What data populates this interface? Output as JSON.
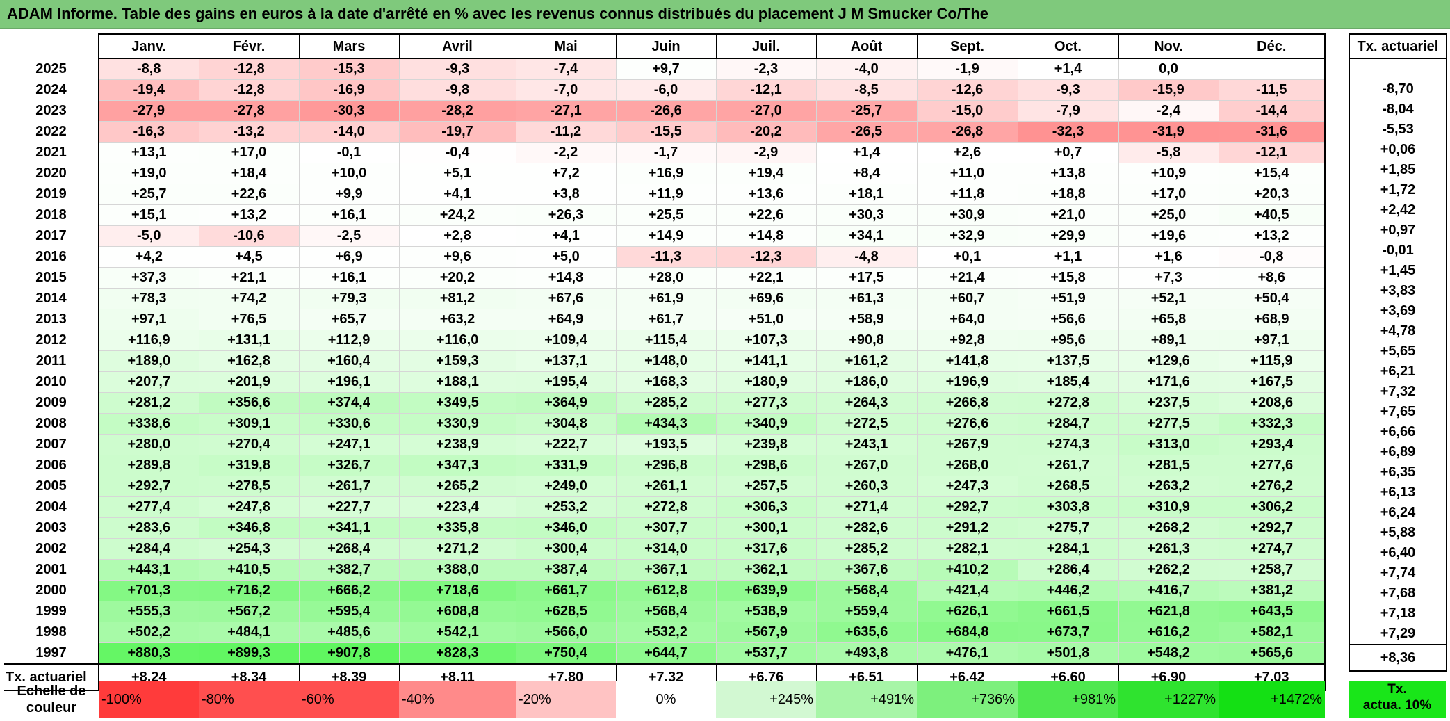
{
  "title": "ADAM Informe. Table des gains en euros à la date d'arrêté en % avec les revenus connus distribués du placement J M Smucker Co/The",
  "months": [
    "Janv.",
    "Févr.",
    "Mars",
    "Avril",
    "Mai",
    "Juin",
    "Juil.",
    "Août",
    "Sept.",
    "Oct.",
    "Nov.",
    "Déc."
  ],
  "rate_header": "Tx. actuariel",
  "rows": [
    {
      "year": "2025",
      "values": [
        "-8,8",
        "-12,8",
        "-15,3",
        "-9,3",
        "-7,4",
        "+9,7",
        "-2,3",
        "-4,0",
        "-1,9",
        "+1,4",
        "0,0",
        ""
      ],
      "rate": ""
    },
    {
      "year": "2024",
      "values": [
        "-19,4",
        "-12,8",
        "-16,9",
        "-9,8",
        "-7,0",
        "-6,0",
        "-12,1",
        "-8,5",
        "-12,6",
        "-9,3",
        "-15,9",
        "-11,5"
      ],
      "rate": "-8,70"
    },
    {
      "year": "2023",
      "values": [
        "-27,9",
        "-27,8",
        "-30,3",
        "-28,2",
        "-27,1",
        "-26,6",
        "-27,0",
        "-25,7",
        "-15,0",
        "-7,9",
        "-2,4",
        "-14,4"
      ],
      "rate": "-8,04"
    },
    {
      "year": "2022",
      "values": [
        "-16,3",
        "-13,2",
        "-14,0",
        "-19,7",
        "-11,2",
        "-15,5",
        "-20,2",
        "-26,5",
        "-26,8",
        "-32,3",
        "-31,9",
        "-31,6"
      ],
      "rate": "-5,53"
    },
    {
      "year": "2021",
      "values": [
        "+13,1",
        "+17,0",
        "-0,1",
        "-0,4",
        "-2,2",
        "-1,7",
        "-2,9",
        "+1,4",
        "+2,6",
        "+0,7",
        "-5,8",
        "-12,1"
      ],
      "rate": "+0,06"
    },
    {
      "year": "2020",
      "values": [
        "+19,0",
        "+18,4",
        "+10,0",
        "+5,1",
        "+7,2",
        "+16,9",
        "+19,4",
        "+8,4",
        "+11,0",
        "+13,8",
        "+10,9",
        "+15,4"
      ],
      "rate": "+1,85"
    },
    {
      "year": "2019",
      "values": [
        "+25,7",
        "+22,6",
        "+9,9",
        "+4,1",
        "+3,8",
        "+11,9",
        "+13,6",
        "+18,1",
        "+11,8",
        "+18,8",
        "+17,0",
        "+20,3"
      ],
      "rate": "+1,72"
    },
    {
      "year": "2018",
      "values": [
        "+15,1",
        "+13,2",
        "+16,1",
        "+24,2",
        "+26,3",
        "+25,5",
        "+22,6",
        "+30,3",
        "+30,9",
        "+21,0",
        "+25,0",
        "+40,5"
      ],
      "rate": "+2,42"
    },
    {
      "year": "2017",
      "values": [
        "-5,0",
        "-10,6",
        "-2,5",
        "+2,8",
        "+4,1",
        "+14,9",
        "+14,8",
        "+34,1",
        "+32,9",
        "+29,9",
        "+19,6",
        "+13,2"
      ],
      "rate": "+0,97"
    },
    {
      "year": "2016",
      "values": [
        "+4,2",
        "+4,5",
        "+6,9",
        "+9,6",
        "+5,0",
        "-11,3",
        "-12,3",
        "-4,8",
        "+0,1",
        "+1,1",
        "+1,6",
        "-0,8"
      ],
      "rate": "-0,01"
    },
    {
      "year": "2015",
      "values": [
        "+37,3",
        "+21,1",
        "+16,1",
        "+20,2",
        "+14,8",
        "+28,0",
        "+22,1",
        "+17,5",
        "+21,4",
        "+15,8",
        "+7,3",
        "+8,6"
      ],
      "rate": "+1,45"
    },
    {
      "year": "2014",
      "values": [
        "+78,3",
        "+74,2",
        "+79,3",
        "+81,2",
        "+67,6",
        "+61,9",
        "+69,6",
        "+61,3",
        "+60,7",
        "+51,9",
        "+52,1",
        "+50,4"
      ],
      "rate": "+3,83"
    },
    {
      "year": "2013",
      "values": [
        "+97,1",
        "+76,5",
        "+65,7",
        "+63,2",
        "+64,9",
        "+61,7",
        "+51,0",
        "+58,9",
        "+64,0",
        "+56,6",
        "+65,8",
        "+68,9"
      ],
      "rate": "+3,69"
    },
    {
      "year": "2012",
      "values": [
        "+116,9",
        "+131,1",
        "+112,9",
        "+116,0",
        "+109,4",
        "+115,4",
        "+107,3",
        "+90,8",
        "+92,8",
        "+95,6",
        "+89,1",
        "+97,1"
      ],
      "rate": "+4,78"
    },
    {
      "year": "2011",
      "values": [
        "+189,0",
        "+162,8",
        "+160,4",
        "+159,3",
        "+137,1",
        "+148,0",
        "+141,1",
        "+161,2",
        "+141,8",
        "+137,5",
        "+129,6",
        "+115,9"
      ],
      "rate": "+5,65"
    },
    {
      "year": "2010",
      "values": [
        "+207,7",
        "+201,9",
        "+196,1",
        "+188,1",
        "+195,4",
        "+168,3",
        "+180,9",
        "+186,0",
        "+196,9",
        "+185,4",
        "+171,6",
        "+167,5"
      ],
      "rate": "+6,21"
    },
    {
      "year": "2009",
      "values": [
        "+281,2",
        "+356,6",
        "+374,4",
        "+349,5",
        "+364,9",
        "+285,2",
        "+277,3",
        "+264,3",
        "+266,8",
        "+272,8",
        "+237,5",
        "+208,6"
      ],
      "rate": "+7,32"
    },
    {
      "year": "2008",
      "values": [
        "+338,6",
        "+309,1",
        "+330,6",
        "+330,9",
        "+304,8",
        "+434,3",
        "+340,9",
        "+272,5",
        "+276,6",
        "+284,7",
        "+277,5",
        "+332,3"
      ],
      "rate": "+7,65"
    },
    {
      "year": "2007",
      "values": [
        "+280,0",
        "+270,4",
        "+247,1",
        "+238,9",
        "+222,7",
        "+193,5",
        "+239,8",
        "+243,1",
        "+267,9",
        "+274,3",
        "+313,0",
        "+293,4"
      ],
      "rate": "+6,66"
    },
    {
      "year": "2006",
      "values": [
        "+289,8",
        "+319,8",
        "+326,7",
        "+347,3",
        "+331,9",
        "+296,8",
        "+298,6",
        "+267,0",
        "+268,0",
        "+261,7",
        "+281,5",
        "+277,6"
      ],
      "rate": "+6,89"
    },
    {
      "year": "2005",
      "values": [
        "+292,7",
        "+278,5",
        "+261,7",
        "+265,2",
        "+249,0",
        "+261,1",
        "+257,5",
        "+260,3",
        "+247,3",
        "+268,5",
        "+263,2",
        "+276,2"
      ],
      "rate": "+6,35"
    },
    {
      "year": "2004",
      "values": [
        "+277,4",
        "+247,8",
        "+227,7",
        "+223,4",
        "+253,2",
        "+272,8",
        "+306,3",
        "+271,4",
        "+292,7",
        "+303,8",
        "+310,9",
        "+306,2"
      ],
      "rate": "+6,13"
    },
    {
      "year": "2003",
      "values": [
        "+283,6",
        "+346,8",
        "+341,1",
        "+335,8",
        "+346,0",
        "+307,7",
        "+300,1",
        "+282,6",
        "+291,2",
        "+275,7",
        "+268,2",
        "+292,7"
      ],
      "rate": "+6,24"
    },
    {
      "year": "2002",
      "values": [
        "+284,4",
        "+254,3",
        "+268,4",
        "+271,2",
        "+300,4",
        "+314,0",
        "+317,6",
        "+285,2",
        "+282,1",
        "+284,1",
        "+261,3",
        "+274,7"
      ],
      "rate": "+5,88"
    },
    {
      "year": "2001",
      "values": [
        "+443,1",
        "+410,5",
        "+382,7",
        "+388,0",
        "+387,4",
        "+367,1",
        "+362,1",
        "+367,6",
        "+410,2",
        "+286,4",
        "+262,2",
        "+258,7"
      ],
      "rate": "+6,40"
    },
    {
      "year": "2000",
      "values": [
        "+701,3",
        "+716,2",
        "+666,2",
        "+718,6",
        "+661,7",
        "+612,8",
        "+639,9",
        "+568,4",
        "+421,4",
        "+446,2",
        "+416,7",
        "+381,2"
      ],
      "rate": "+7,74"
    },
    {
      "year": "1999",
      "values": [
        "+555,3",
        "+567,2",
        "+595,4",
        "+608,8",
        "+628,5",
        "+568,4",
        "+538,9",
        "+559,4",
        "+626,1",
        "+661,5",
        "+621,8",
        "+643,5"
      ],
      "rate": "+7,68"
    },
    {
      "year": "1998",
      "values": [
        "+502,2",
        "+484,1",
        "+485,6",
        "+542,1",
        "+566,0",
        "+532,2",
        "+567,9",
        "+635,6",
        "+684,8",
        "+673,7",
        "+616,2",
        "+582,1"
      ],
      "rate": "+7,18"
    },
    {
      "year": "1997",
      "values": [
        "+880,3",
        "+899,3",
        "+907,8",
        "+828,3",
        "+750,4",
        "+644,7",
        "+537,7",
        "+493,8",
        "+476,1",
        "+501,8",
        "+548,2",
        "+565,6"
      ],
      "rate": "+7,29"
    }
  ],
  "summary": {
    "label": "Tx. actuariel",
    "values": [
      "+8,24",
      "+8,34",
      "+8,39",
      "+8,11",
      "+7,80",
      "+7,32",
      "+6,76",
      "+6,51",
      "+6,42",
      "+6,60",
      "+6,90",
      "+7,03"
    ],
    "rate": "+8,36"
  },
  "scale": {
    "label_line1": "Echelle de",
    "label_line2": "couleur",
    "steps": [
      {
        "text": "-100%",
        "color": "#ff3b3b",
        "align": "left"
      },
      {
        "text": "-80%",
        "color": "#ff4f4f",
        "align": "left"
      },
      {
        "text": "-60%",
        "color": "#ff4f4f",
        "align": "left"
      },
      {
        "text": "-40%",
        "color": "#ff8a8a",
        "align": "left"
      },
      {
        "text": "-20%",
        "color": "#ffc3c3",
        "align": "left"
      },
      {
        "text": "0%",
        "color": "#ffffff",
        "align": "center"
      },
      {
        "text": "+245%",
        "color": "#d2f8d2",
        "align": "right"
      },
      {
        "text": "+491%",
        "color": "#a7f5a7",
        "align": "right"
      },
      {
        "text": "+736%",
        "color": "#7df07d",
        "align": "right"
      },
      {
        "text": "+981%",
        "color": "#4fe84f",
        "align": "right"
      },
      {
        "text": "+1227%",
        "color": "#2fe32f",
        "align": "right"
      },
      {
        "text": "+1472%",
        "color": "#14e014",
        "align": "right"
      }
    ],
    "rate_legend_line1": "Tx.",
    "rate_legend_line2": "actua. 10%",
    "rate_legend_color": "#19e619"
  }
}
